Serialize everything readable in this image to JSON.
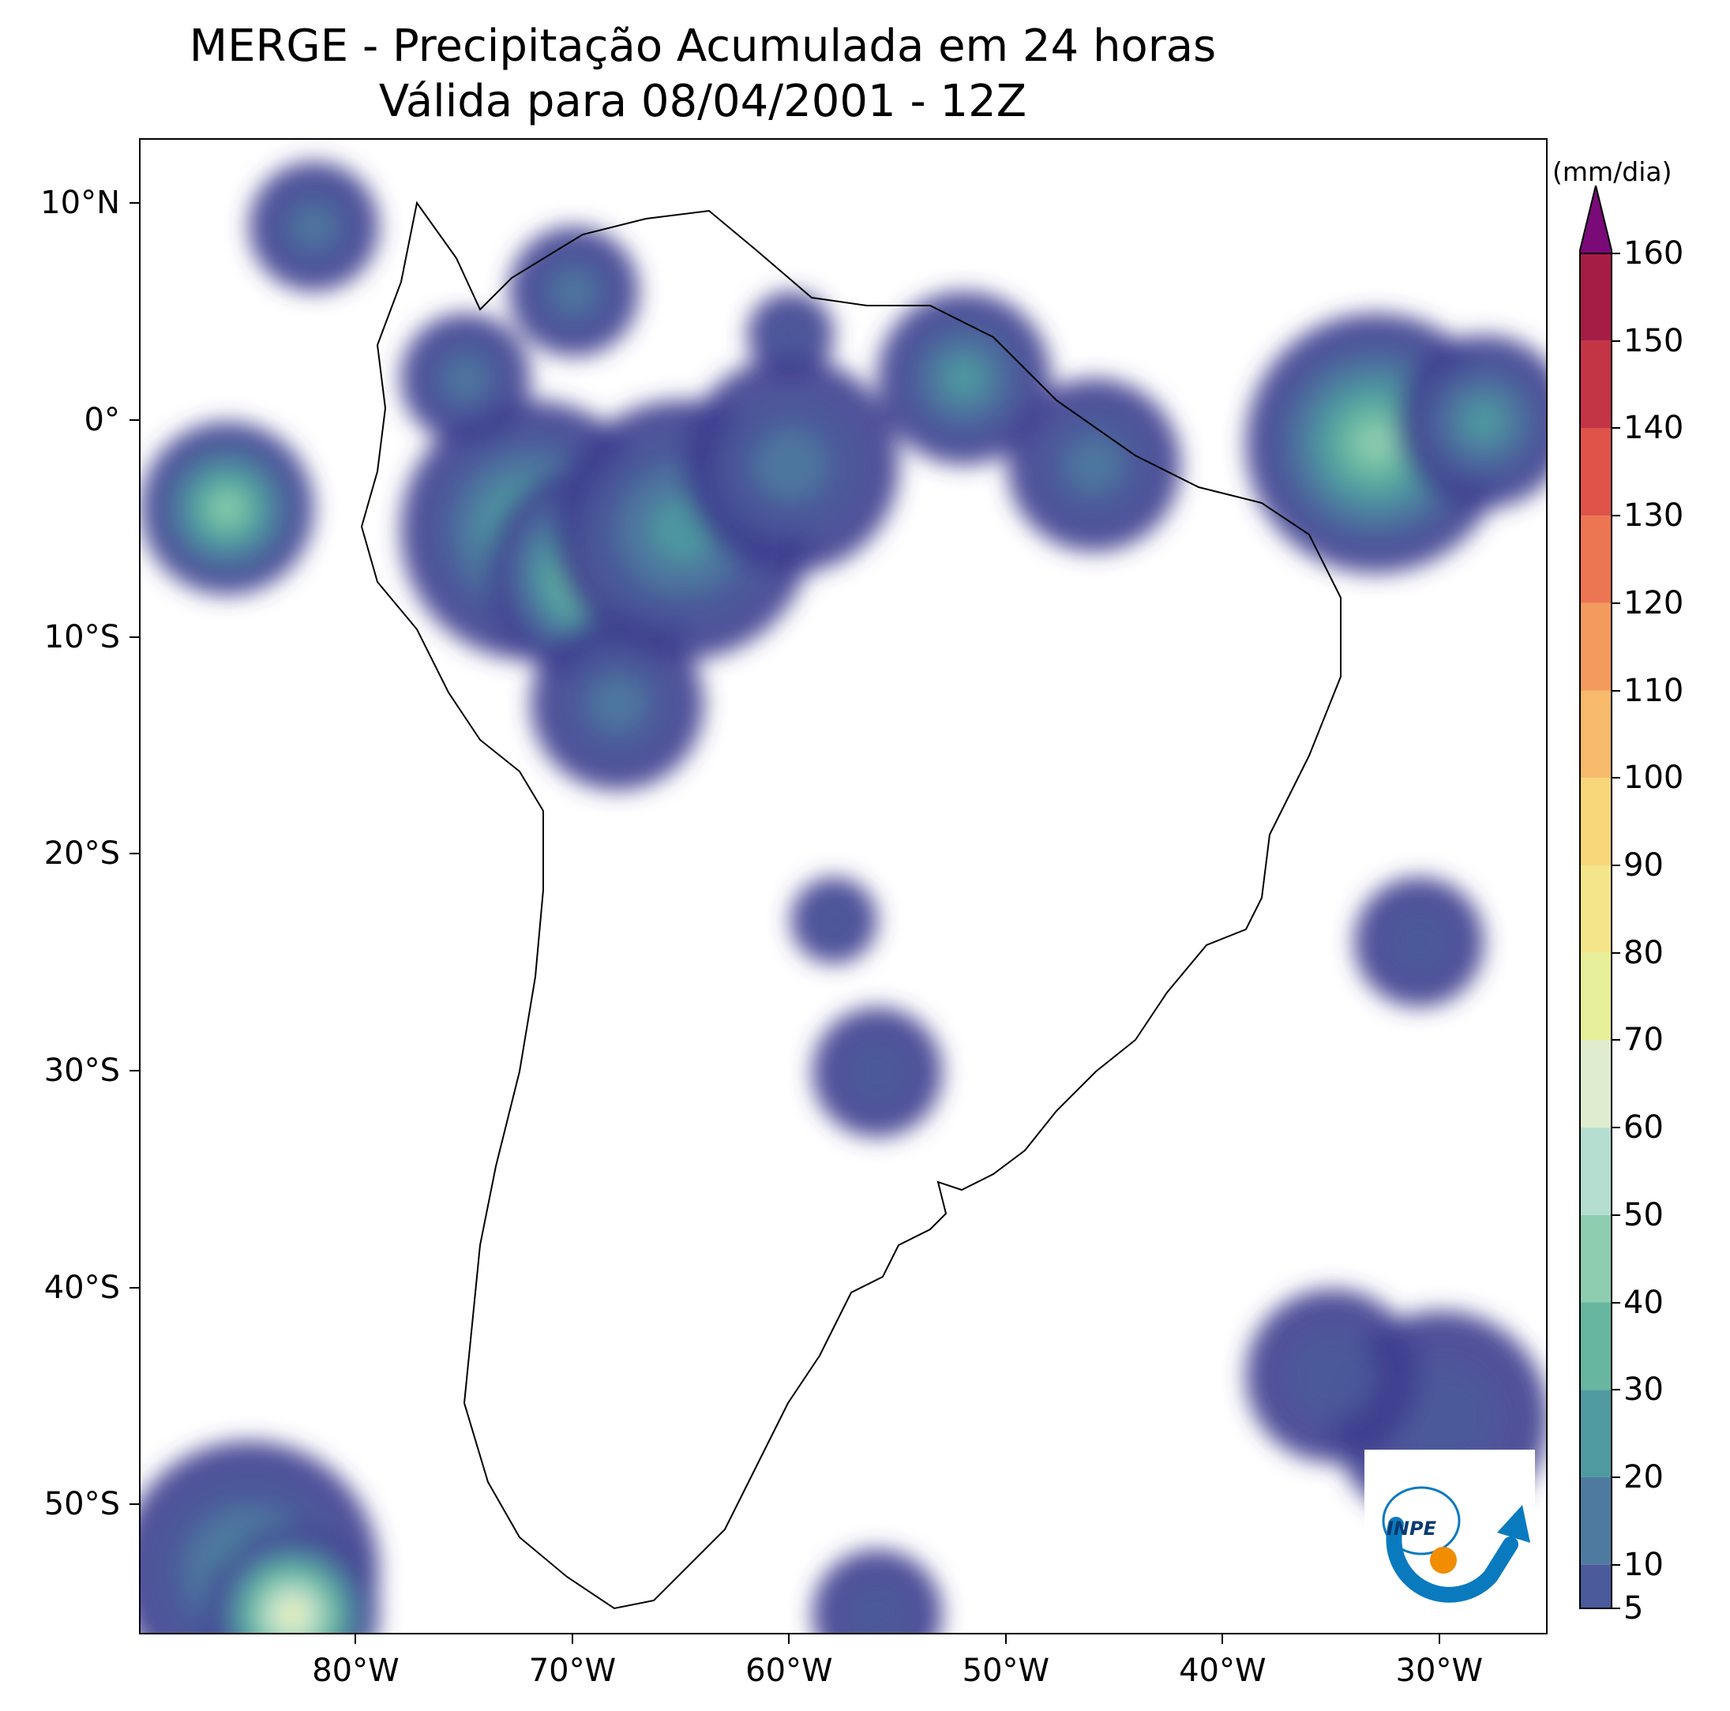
{
  "title": {
    "line1": "MERGE - Precipitação Acumulada em 24 horas",
    "line2": "Válida para 08/04/2001 - 12Z"
  },
  "axes": {
    "lat_labels": [
      "10°N",
      "0°",
      "10°S",
      "20°S",
      "30°S",
      "40°S",
      "50°S"
    ],
    "lon_labels": [
      "80°W",
      "70°W",
      "60°W",
      "50°W",
      "40°W",
      "30°W"
    ]
  },
  "colorbar": {
    "units": "(mm/dia)",
    "tick_labels": [
      "5",
      "10",
      "20",
      "30",
      "40",
      "50",
      "60",
      "70",
      "80",
      "90",
      "100",
      "110",
      "120",
      "130",
      "140",
      "150",
      "160"
    ],
    "levels": [
      5,
      10,
      20,
      30,
      40,
      50,
      60,
      70,
      80,
      90,
      100,
      110,
      120,
      130,
      140,
      150,
      160
    ],
    "colors": [
      "#3f3f8f",
      "#4a5a9a",
      "#4f7aa0",
      "#4f9aa0",
      "#67b7a0",
      "#8ecdb0",
      "#b5ddd0",
      "#dfeccf",
      "#e8ef9a",
      "#f5e58a",
      "#f8d77a",
      "#f7b96a",
      "#f39a5e",
      "#ec7552",
      "#df5349",
      "#c33445",
      "#a51c45"
    ],
    "extend_color": "#7a0a78"
  },
  "logo": {
    "text": "INPE",
    "colors": {
      "arc": "#0a7abf",
      "sun": "#f18d00"
    }
  },
  "map": {
    "extent": {
      "lon_min": -90,
      "lon_max": -25,
      "lat_min": -56,
      "lat_max": 13
    },
    "precip_blobs": [
      {
        "lon": -72,
        "lat": -5,
        "r": 6,
        "level": 4
      },
      {
        "lon": -69,
        "lat": -7,
        "r": 5,
        "level": 6
      },
      {
        "lon": -65,
        "lat": -5,
        "r": 6,
        "level": 3
      },
      {
        "lon": -60,
        "lat": -2,
        "r": 5,
        "level": 2
      },
      {
        "lon": -52,
        "lat": 2,
        "r": 4,
        "level": 3
      },
      {
        "lon": -46,
        "lat": -2,
        "r": 4,
        "level": 2
      },
      {
        "lon": -33,
        "lat": -1,
        "r": 6,
        "level": 5
      },
      {
        "lon": -28,
        "lat": 0,
        "r": 4,
        "level": 3
      },
      {
        "lon": -86,
        "lat": -4,
        "r": 4,
        "level": 5
      },
      {
        "lon": -75,
        "lat": 2,
        "r": 3,
        "level": 2
      },
      {
        "lon": -68,
        "lat": -13,
        "r": 4,
        "level": 2
      },
      {
        "lon": -58,
        "lat": -23,
        "r": 2,
        "level": 1
      },
      {
        "lon": -56,
        "lat": -30,
        "r": 3,
        "level": 1
      },
      {
        "lon": -31,
        "lat": -24,
        "r": 3,
        "level": 1
      },
      {
        "lon": -30,
        "lat": -46,
        "r": 5,
        "level": 1
      },
      {
        "lon": -85,
        "lat": -53,
        "r": 6,
        "level": 3
      },
      {
        "lon": -83,
        "lat": -55,
        "r": 4,
        "level": 8
      },
      {
        "lon": -35,
        "lat": -44,
        "r": 4,
        "level": 1
      },
      {
        "lon": -56,
        "lat": -55,
        "r": 3,
        "level": 1
      },
      {
        "lon": -82,
        "lat": 9,
        "r": 3,
        "level": 2
      },
      {
        "lon": -70,
        "lat": 6,
        "r": 3,
        "level": 2
      },
      {
        "lon": -60,
        "lat": 4,
        "r": 2,
        "level": 1
      }
    ]
  }
}
